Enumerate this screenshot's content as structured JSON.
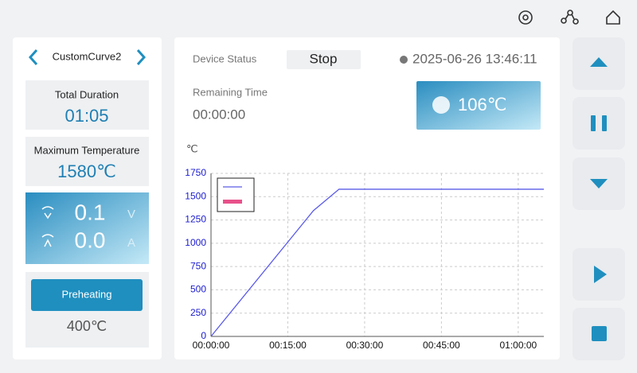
{
  "left_panel": {
    "curve_name": "CustomCurve2",
    "total_duration_label": "Total Duration",
    "total_duration": "01:05",
    "max_temp_label": "Maximum Temperature",
    "max_temp": "1580℃",
    "voltage": "0.1",
    "voltage_unit": "V",
    "current": "0.0",
    "current_unit": "A",
    "preheat_button": "Preheating",
    "preheat_temp": "400℃"
  },
  "status": {
    "device_status_label": "Device Status",
    "device_status": "Stop",
    "datetime": "2025-06-26 13:46:11",
    "remaining_label": "Remaining Time",
    "remaining": "00:00:00",
    "temperature": "106℃"
  },
  "chart_data": {
    "type": "line",
    "y_label": "℃",
    "x": [
      0,
      20,
      25,
      65
    ],
    "series": [
      {
        "color": "#5a5ae8",
        "values": [
          0,
          1350,
          1580,
          1580
        ]
      },
      {
        "color": "#e8508a",
        "values": [
          null,
          null,
          null,
          null
        ]
      }
    ],
    "xlim": [
      0,
      65
    ],
    "xticks": [
      {
        "value": 0,
        "label": "00:00:00"
      },
      {
        "value": 15,
        "label": "00:15:00"
      },
      {
        "value": 30,
        "label": "00:30:00"
      },
      {
        "value": 45,
        "label": "00:45:00"
      },
      {
        "value": 60,
        "label": "01:00:00"
      }
    ],
    "ylim": [
      0,
      1750
    ],
    "yticks": [
      0,
      250,
      500,
      750,
      1000,
      1250,
      1500,
      1750
    ],
    "grid": true
  }
}
